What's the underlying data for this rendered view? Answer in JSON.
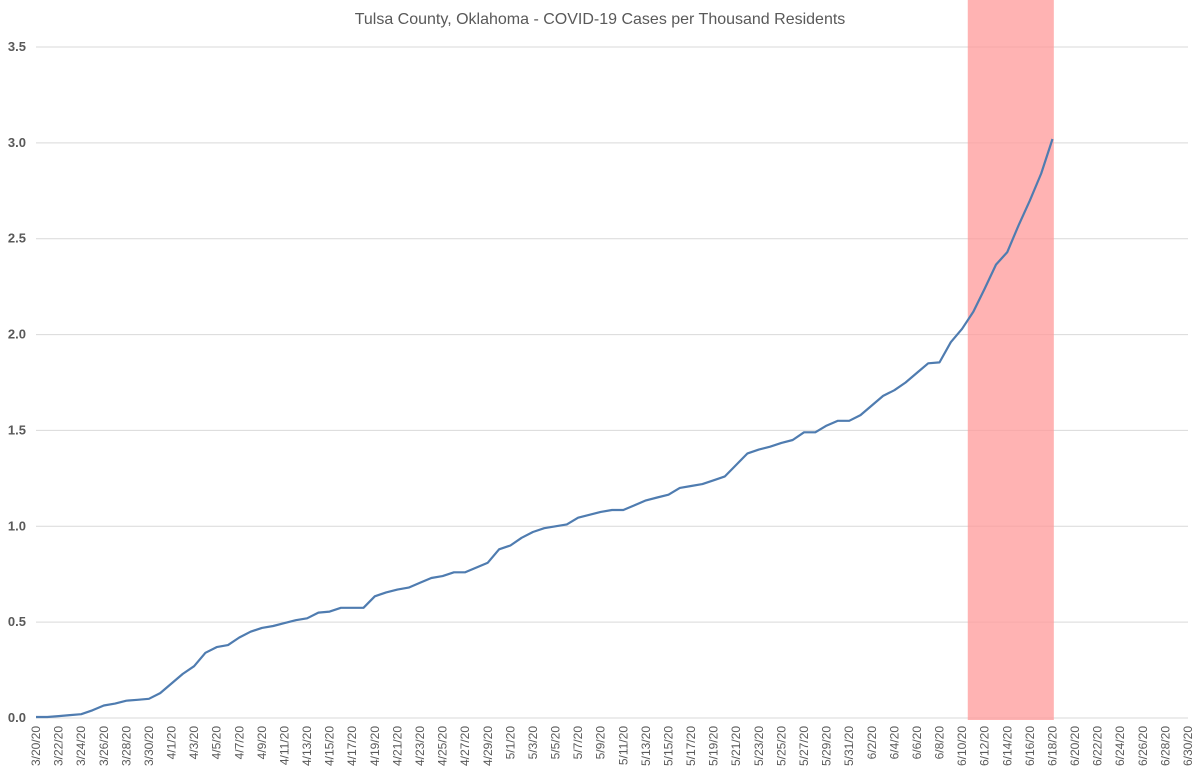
{
  "chart_data": {
    "type": "line",
    "title": "Tulsa County, Oklahoma - COVID-19 Cases per Thousand Residents",
    "xlabel": "",
    "ylabel": "",
    "ylim": [
      0,
      3.5
    ],
    "yticks": [
      "0.0",
      "0.5",
      "1.0",
      "1.5",
      "2.0",
      "2.5",
      "3.0",
      "3.5"
    ],
    "x_range": [
      "3/20/20",
      "6/30/20"
    ],
    "x_tick_labels": [
      "3/20/20",
      "3/22/20",
      "3/24/20",
      "3/26/20",
      "3/28/20",
      "3/30/20",
      "4/1/20",
      "4/3/20",
      "4/5/20",
      "4/7/20",
      "4/9/20",
      "4/11/20",
      "4/13/20",
      "4/15/20",
      "4/17/20",
      "4/19/20",
      "4/21/20",
      "4/23/20",
      "4/25/20",
      "4/27/20",
      "4/29/20",
      "5/1/20",
      "5/3/20",
      "5/5/20",
      "5/7/20",
      "5/9/20",
      "5/11/20",
      "5/13/20",
      "5/15/20",
      "5/17/20",
      "5/19/20",
      "5/21/20",
      "5/23/20",
      "5/25/20",
      "5/27/20",
      "5/29/20",
      "5/31/20",
      "6/2/20",
      "6/4/20",
      "6/6/20",
      "6/8/20",
      "6/10/20",
      "6/12/20",
      "6/14/20",
      "6/16/20",
      "6/18/20",
      "6/20/20",
      "6/22/20",
      "6/24/20",
      "6/26/20",
      "6/28/20",
      "6/30/20"
    ],
    "grid": true,
    "legend": "none",
    "highlight": {
      "from": "6/11/20",
      "to": "6/18/20",
      "color": "#ff9999"
    },
    "series_color": "#4f7cb0",
    "series": [
      {
        "x": [
          "3/20/20",
          "3/21/20",
          "3/22/20",
          "3/23/20",
          "3/24/20",
          "3/25/20",
          "3/26/20",
          "3/27/20",
          "3/28/20",
          "3/29/20",
          "3/30/20",
          "3/31/20",
          "4/1/20",
          "4/2/20",
          "4/3/20",
          "4/4/20",
          "4/5/20",
          "4/6/20",
          "4/7/20",
          "4/8/20",
          "4/9/20",
          "4/10/20",
          "4/11/20",
          "4/12/20",
          "4/13/20",
          "4/14/20",
          "4/15/20",
          "4/16/20",
          "4/17/20",
          "4/18/20",
          "4/19/20",
          "4/20/20",
          "4/21/20",
          "4/22/20",
          "4/23/20",
          "4/24/20",
          "4/25/20",
          "4/26/20",
          "4/27/20",
          "4/28/20",
          "4/29/20",
          "4/30/20",
          "5/1/20",
          "5/2/20",
          "5/3/20",
          "5/4/20",
          "5/5/20",
          "5/6/20",
          "5/7/20",
          "5/8/20",
          "5/9/20",
          "5/10/20",
          "5/11/20",
          "5/12/20",
          "5/13/20",
          "5/14/20",
          "5/15/20",
          "5/16/20",
          "5/17/20",
          "5/18/20",
          "5/19/20",
          "5/20/20",
          "5/21/20",
          "5/22/20",
          "5/23/20",
          "5/24/20",
          "5/25/20",
          "5/26/20",
          "5/27/20",
          "5/28/20",
          "5/29/20",
          "5/30/20",
          "5/31/20",
          "6/1/20",
          "6/2/20",
          "6/3/20",
          "6/4/20",
          "6/5/20",
          "6/6/20",
          "6/7/20",
          "6/8/20",
          "6/9/20",
          "6/10/20",
          "6/11/20",
          "6/12/20",
          "6/13/20",
          "6/14/20",
          "6/15/20",
          "6/16/20",
          "6/17/20",
          "6/18/20"
        ],
        "values": [
          0.005,
          0.005,
          0.01,
          0.015,
          0.02,
          0.04,
          0.065,
          0.075,
          0.09,
          0.095,
          0.1,
          0.13,
          0.18,
          0.23,
          0.27,
          0.34,
          0.37,
          0.38,
          0.42,
          0.45,
          0.47,
          0.48,
          0.495,
          0.51,
          0.52,
          0.55,
          0.555,
          0.575,
          0.575,
          0.575,
          0.635,
          0.655,
          0.67,
          0.68,
          0.705,
          0.73,
          0.74,
          0.76,
          0.76,
          0.785,
          0.81,
          0.88,
          0.9,
          0.94,
          0.97,
          0.99,
          1.0,
          1.01,
          1.045,
          1.06,
          1.075,
          1.085,
          1.085,
          1.11,
          1.135,
          1.15,
          1.165,
          1.2,
          1.21,
          1.22,
          1.24,
          1.26,
          1.32,
          1.38,
          1.4,
          1.415,
          1.435,
          1.45,
          1.49,
          1.49,
          1.525,
          1.55,
          1.55,
          1.58,
          1.63,
          1.68,
          1.71,
          1.75,
          1.8,
          1.85,
          1.855,
          1.96,
          2.03,
          2.12,
          2.24,
          2.365,
          2.43,
          2.57,
          2.7,
          2.84,
          3.02
        ]
      }
    ]
  }
}
